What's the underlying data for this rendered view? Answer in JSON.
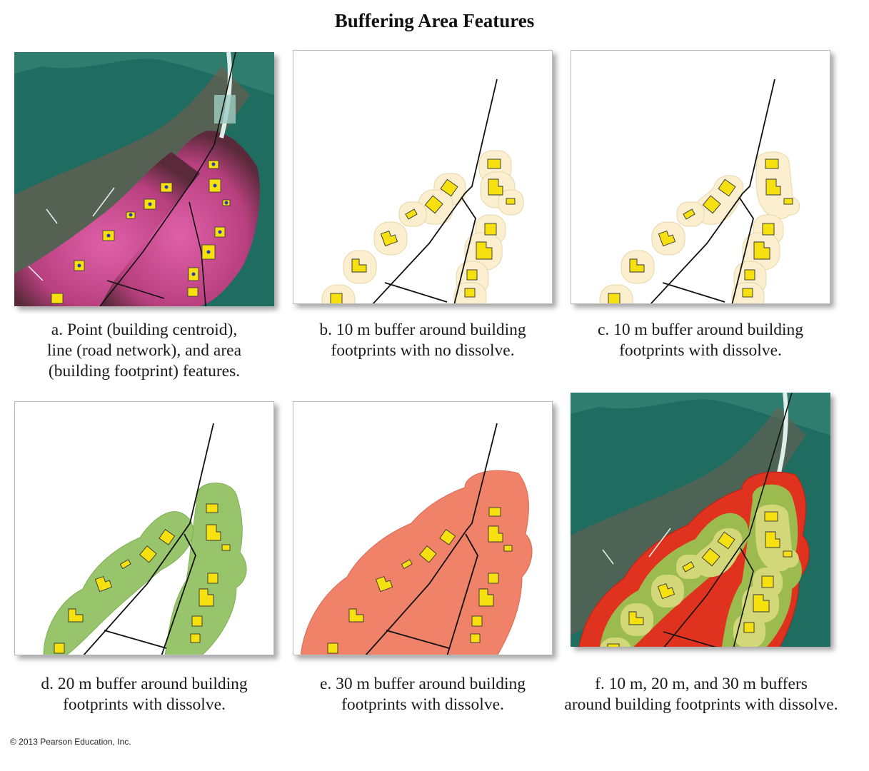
{
  "title": "Buffering Area Features",
  "panels": [
    {
      "id": "a",
      "caption_lines": [
        "a. Point (building centroid),",
        "line (road network), and area",
        "(building footprint) features."
      ]
    },
    {
      "id": "b",
      "caption_lines": [
        "b. 10 m buffer around building",
        "footprints with no dissolve."
      ]
    },
    {
      "id": "c",
      "caption_lines": [
        "c. 10 m buffer around building",
        "footprints with dissolve."
      ]
    },
    {
      "id": "d",
      "caption_lines": [
        "d. 20 m buffer around building",
        "footprints with dissolve."
      ]
    },
    {
      "id": "e",
      "caption_lines": [
        "e. 30 m buffer around building",
        "footprints with dissolve."
      ]
    },
    {
      "id": "f",
      "caption_lines": [
        "f. 10 m, 20 m, and 30 m buffers",
        "around building footprints with dissolve."
      ]
    }
  ],
  "copyright": "© 2013 Pearson Education, Inc.",
  "colors": {
    "building": "#f7e00f",
    "buffer_10m": "#fbefcf",
    "buffer_20m": "#98c56b",
    "buffer_30m": "#ef8268",
    "photo_water": "#1e6a5e",
    "photo_vegetation": "#c54a8e",
    "road": "#111111"
  }
}
